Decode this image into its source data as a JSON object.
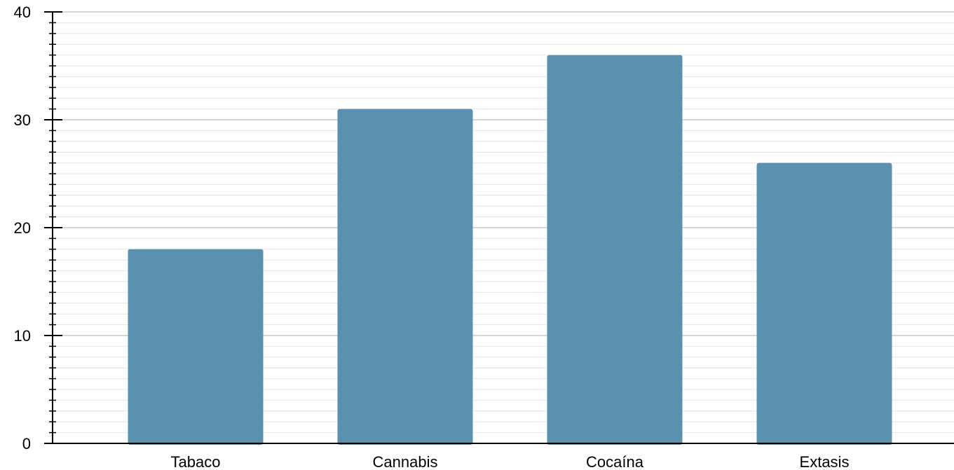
{
  "chart_data": {
    "type": "bar",
    "categories": [
      "Tabaco",
      "Cannabis",
      "Cocaína",
      "Extasis"
    ],
    "values": [
      18,
      31,
      36,
      26
    ],
    "ylim": [
      0,
      40
    ],
    "y_ticks": [
      0,
      10,
      20,
      30,
      40
    ],
    "y_minor_step": 1,
    "grid": true,
    "legend": "none",
    "colors": {
      "bar": "#5a91ae",
      "major_grid": "#c8c8c8",
      "minor_grid": "#e4e4e4",
      "axis": "#000000"
    }
  }
}
